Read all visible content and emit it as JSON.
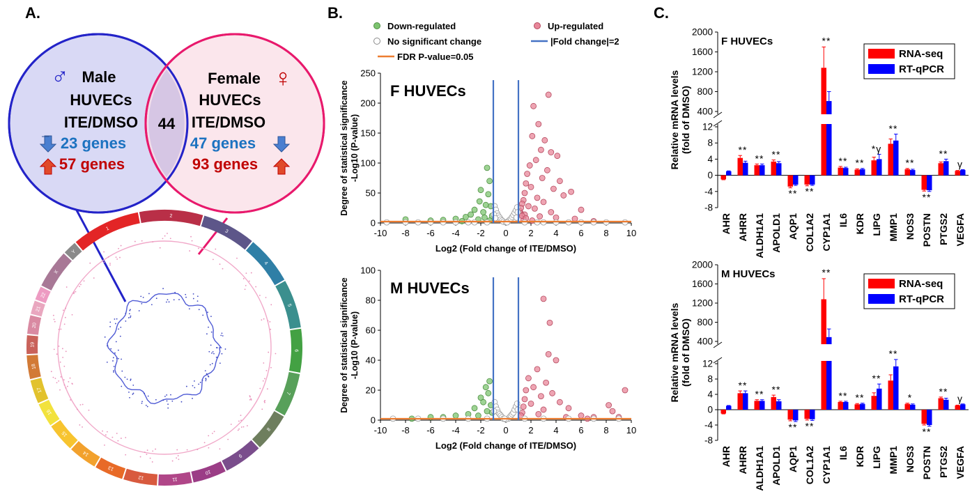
{
  "panels": {
    "a": {
      "label": "A.",
      "venn": {
        "male": {
          "symbol": "♂",
          "lines": [
            "Male",
            "HUVECs",
            "ITE/DMSO"
          ],
          "down_text": "23 genes",
          "up_text": "57 genes"
        },
        "female": {
          "symbol": "♀",
          "lines": [
            "Female",
            "HUVECs",
            "ITE/DMSO"
          ],
          "down_text": "47 genes",
          "up_text": "93 genes"
        },
        "overlap": "44"
      },
      "circos": {
        "chromosomes": [
          "1",
          "2",
          "3",
          "4",
          "5",
          "6",
          "7",
          "8",
          "9",
          "10",
          "11",
          "12",
          "13",
          "14",
          "15",
          "16",
          "17",
          "18",
          "19",
          "20",
          "21",
          "22",
          "X",
          "Y"
        ]
      }
    },
    "b": {
      "label": "B.",
      "legend": {
        "down": "Down-regulated",
        "up": "Up-regulated",
        "nochange": "No significant change",
        "fold": "|Fold change|=2",
        "fdr": "FDR P-value=0.05"
      }
    },
    "c": {
      "label": "C.",
      "legend": {
        "rnaseq": "RNA-seq",
        "qpcr": "RT-qPCR"
      }
    }
  },
  "colors": {
    "male_circle": "#2323c8",
    "male_fill": "#d9d9f5",
    "female_circle": "#e8196c",
    "female_fill": "#fadde6",
    "blue_text": "#1c72c0",
    "red_text": "#c00000",
    "down_points": "#7dc470",
    "up_points": "#e8879a",
    "nochange_points": "#9a9a9a",
    "fold_line": "#4472c4",
    "fdr_line": "#ed7d31",
    "rnaseq": "#ff0000",
    "qpcr": "#0000ff"
  },
  "chart_data": [
    {
      "id": "volcano-f",
      "type": "scatter",
      "title": "F HUVECs",
      "xlabel": "Log2 (Fold change of ITE/DMSO)",
      "ylabel": [
        "Degree of statistical significance",
        "-Log10 (P-value)"
      ],
      "xlim": [
        -10,
        10
      ],
      "ylim": [
        0,
        250
      ],
      "xticks": [
        -10,
        -8,
        -6,
        -4,
        -2,
        0,
        2,
        4,
        6,
        8,
        10
      ],
      "yticks": [
        0,
        50,
        100,
        150,
        200,
        250
      ],
      "fold_lines": [
        -1,
        1
      ],
      "series": [
        {
          "name": "Down-regulated",
          "points": [
            [
              -1.5,
              92
            ],
            [
              -1.3,
              70
            ],
            [
              -2.0,
              55
            ],
            [
              -1.4,
              48
            ],
            [
              -2.1,
              36
            ],
            [
              -1.6,
              30
            ],
            [
              -1.2,
              28
            ],
            [
              -2.5,
              22
            ],
            [
              -1.8,
              18
            ],
            [
              -2.8,
              14
            ],
            [
              -3.2,
              10
            ],
            [
              -4.0,
              7
            ],
            [
              -5.0,
              5
            ],
            [
              -6.0,
              4
            ],
            [
              -8.0,
              6
            ],
            [
              -1.1,
              12
            ],
            [
              -1.7,
              9
            ],
            [
              -2.2,
              6
            ],
            [
              -3.5,
              3
            ],
            [
              -1.3,
              4
            ]
          ]
        },
        {
          "name": "Up-regulated",
          "points": [
            [
              3.4,
              214
            ],
            [
              2.2,
              195
            ],
            [
              2.6,
              165
            ],
            [
              2.1,
              145
            ],
            [
              3.1,
              138
            ],
            [
              2.8,
              122
            ],
            [
              3.6,
              118
            ],
            [
              4.1,
              112
            ],
            [
              2.4,
              105
            ],
            [
              1.9,
              96
            ],
            [
              3.3,
              88
            ],
            [
              1.7,
              82
            ],
            [
              2.9,
              75
            ],
            [
              4.3,
              70
            ],
            [
              1.6,
              66
            ],
            [
              2.0,
              60
            ],
            [
              3.8,
              57
            ],
            [
              5.2,
              52
            ],
            [
              1.5,
              50
            ],
            [
              4.6,
              46
            ],
            [
              2.5,
              42
            ],
            [
              1.4,
              38
            ],
            [
              3.0,
              35
            ],
            [
              1.3,
              32
            ],
            [
              1.8,
              28
            ],
            [
              2.3,
              24
            ],
            [
              6.0,
              22
            ],
            [
              3.6,
              18
            ],
            [
              1.2,
              16
            ],
            [
              1.5,
              14
            ],
            [
              2.7,
              11
            ],
            [
              4.0,
              9
            ],
            [
              5.5,
              7
            ],
            [
              1.4,
              6
            ],
            [
              2.1,
              4
            ],
            [
              7.0,
              3
            ],
            [
              1.1,
              20
            ],
            [
              1.2,
              25
            ],
            [
              1.3,
              12
            ],
            [
              1.6,
              8
            ]
          ]
        },
        {
          "name": "No significant change",
          "points": [
            [
              -0.9,
              28
            ],
            [
              -0.8,
              22
            ],
            [
              -0.7,
              16
            ],
            [
              -0.6,
              12
            ],
            [
              -0.5,
              9
            ],
            [
              -0.4,
              6
            ],
            [
              -0.3,
              4
            ],
            [
              -0.2,
              2
            ],
            [
              0.2,
              3
            ],
            [
              0.3,
              5
            ],
            [
              0.4,
              7
            ],
            [
              0.5,
              10
            ],
            [
              0.6,
              13
            ],
            [
              0.7,
              17
            ],
            [
              0.8,
              21
            ],
            [
              0.9,
              26
            ],
            [
              -0.95,
              14
            ],
            [
              0.95,
              18
            ],
            [
              -0.85,
              8
            ],
            [
              0.85,
              9
            ],
            [
              -1.5,
              1
            ],
            [
              -2.5,
              1
            ],
            [
              -4,
              1
            ],
            [
              -6,
              1
            ],
            [
              -8,
              1
            ],
            [
              1.5,
              1
            ],
            [
              2.5,
              1
            ],
            [
              4,
              1
            ],
            [
              6,
              1
            ],
            [
              8,
              1
            ],
            [
              9.5,
              1
            ],
            [
              -9.5,
              1
            ],
            [
              3,
              1
            ],
            [
              5,
              1
            ],
            [
              7,
              1
            ],
            [
              -3,
              1
            ],
            [
              -5,
              1
            ],
            [
              -7,
              1
            ],
            [
              0,
              1
            ],
            [
              0.1,
              1
            ]
          ]
        }
      ]
    },
    {
      "id": "volcano-m",
      "type": "scatter",
      "title": "M HUVECs",
      "xlabel": "Log2 (Fold change of ITE/DMSO)",
      "ylabel": [
        "Degree of statistical significance",
        "-Log10 (P-value)"
      ],
      "xlim": [
        -10,
        10
      ],
      "ylim": [
        0,
        100
      ],
      "xticks": [
        -10,
        -8,
        -6,
        -4,
        -2,
        0,
        2,
        4,
        6,
        8,
        10
      ],
      "yticks": [
        0,
        20,
        40,
        60,
        80,
        100
      ],
      "fold_lines": [
        -1,
        1
      ],
      "series": [
        {
          "name": "Down-regulated",
          "points": [
            [
              -1.3,
              26
            ],
            [
              -1.6,
              22
            ],
            [
              -1.4,
              18
            ],
            [
              -2.0,
              15
            ],
            [
              -1.8,
              12
            ],
            [
              -1.2,
              10
            ],
            [
              -2.5,
              8
            ],
            [
              -1.5,
              6
            ],
            [
              -3.0,
              4
            ],
            [
              -4.0,
              3
            ],
            [
              -5.0,
              2
            ],
            [
              -6.0,
              2
            ],
            [
              -1.1,
              5
            ],
            [
              -2.2,
              3
            ],
            [
              -7.5,
              1
            ]
          ]
        },
        {
          "name": "Up-regulated",
          "points": [
            [
              3.0,
              81
            ],
            [
              3.5,
              65
            ],
            [
              3.4,
              44
            ],
            [
              4.0,
              40
            ],
            [
              2.5,
              34
            ],
            [
              1.8,
              28
            ],
            [
              3.2,
              25
            ],
            [
              2.2,
              22
            ],
            [
              1.6,
              20
            ],
            [
              9.5,
              20
            ],
            [
              3.7,
              18
            ],
            [
              2.8,
              16
            ],
            [
              1.5,
              14
            ],
            [
              4.3,
              12
            ],
            [
              2.0,
              11
            ],
            [
              8.2,
              10
            ],
            [
              1.4,
              9
            ],
            [
              5.0,
              8
            ],
            [
              3.0,
              7
            ],
            [
              8.5,
              6
            ],
            [
              1.3,
              5
            ],
            [
              2.6,
              4
            ],
            [
              6.0,
              3
            ],
            [
              7.0,
              2
            ],
            [
              1.2,
              3
            ],
            [
              9.0,
              2
            ],
            [
              4.8,
              2
            ],
            [
              6.5,
              1
            ]
          ]
        },
        {
          "name": "No significant change",
          "points": [
            [
              -0.9,
              12
            ],
            [
              -0.8,
              9
            ],
            [
              -0.7,
              7
            ],
            [
              -0.6,
              5
            ],
            [
              -0.5,
              4
            ],
            [
              -0.4,
              3
            ],
            [
              -0.3,
              2
            ],
            [
              -0.2,
              1
            ],
            [
              0.2,
              1
            ],
            [
              0.3,
              2
            ],
            [
              0.4,
              3
            ],
            [
              0.5,
              4
            ],
            [
              0.6,
              5
            ],
            [
              0.7,
              7
            ],
            [
              0.8,
              9
            ],
            [
              0.9,
              11
            ],
            [
              -0.95,
              6
            ],
            [
              0.95,
              7
            ],
            [
              -1.5,
              1
            ],
            [
              -3,
              1
            ],
            [
              -5,
              1
            ],
            [
              -7,
              1
            ],
            [
              -9,
              1
            ],
            [
              1.5,
              1
            ],
            [
              3,
              1
            ],
            [
              5,
              1
            ],
            [
              7,
              1
            ],
            [
              9,
              1
            ],
            [
              0,
              0.5
            ],
            [
              -0.1,
              1
            ]
          ]
        }
      ]
    },
    {
      "id": "bars-f",
      "type": "bar",
      "title": "F HUVECs",
      "ylabel": [
        "Relative mRNA levels",
        "(fold of DMSO)"
      ],
      "categories": [
        "AHR",
        "AHRR",
        "ALDH1A1",
        "APOLD1",
        "AQP1",
        "COL1A2",
        "CYP1A1",
        "IL6",
        "KDR",
        "LIPG",
        "MMP1",
        "NOS3",
        "POSTN",
        "PTGS2",
        "VEGFA"
      ],
      "series": [
        {
          "name": "RNA-seq",
          "values": [
            -1.0,
            4.3,
            2.5,
            3.4,
            -2.8,
            -2.3,
            1280,
            1.9,
            1.4,
            3.7,
            7.8,
            1.5,
            -3.6,
            3.0,
            1.1
          ],
          "errors": [
            0.1,
            0.6,
            0.3,
            0.4,
            0.3,
            0.3,
            420,
            0.3,
            0.2,
            0.8,
            1.2,
            0.2,
            0.3,
            0.3,
            0.1
          ]
        },
        {
          "name": "RT-qPCR",
          "values": [
            1.0,
            3.1,
            2.5,
            3.0,
            -2.3,
            -2.3,
            610,
            1.8,
            1.5,
            4.0,
            8.6,
            1.3,
            -3.7,
            3.5,
            1.3
          ],
          "errors": [
            0.1,
            0.4,
            0.3,
            0.4,
            0.2,
            0.2,
            190,
            0.2,
            0.2,
            1.2,
            1.6,
            0.2,
            0.3,
            0.5,
            0.1
          ]
        }
      ],
      "marks": [
        "",
        "**",
        "**",
        "**",
        "**",
        "**",
        "**",
        "**",
        "**",
        "*γ",
        "**",
        "**",
        "**",
        "**",
        "γ"
      ],
      "upper_axis": {
        "ylim": [
          400,
          2000
        ],
        "ticks": [
          400,
          800,
          1200,
          1600,
          2000
        ]
      },
      "lower_axis": {
        "ylim": [
          -8,
          12
        ],
        "ticks": [
          -8,
          -4,
          0,
          4,
          8,
          12
        ]
      },
      "legend_position": "top-right"
    },
    {
      "id": "bars-m",
      "type": "bar",
      "title": "M HUVECs",
      "ylabel": [
        "Relative mRNA levels",
        "(fold of DMSO)"
      ],
      "categories": [
        "AHR",
        "AHRR",
        "ALDH1A1",
        "APOLD1",
        "AQP1",
        "COL1A2",
        "CYP1A1",
        "IL6",
        "KDR",
        "LIPG",
        "MMP1",
        "NOS3",
        "POSTN",
        "PTGS2",
        "VEGFA"
      ],
      "series": [
        {
          "name": "RNA-seq",
          "values": [
            -1.0,
            4.3,
            2.3,
            3.3,
            -2.6,
            -2.4,
            1280,
            2.0,
            1.4,
            3.6,
            7.6,
            1.5,
            -3.7,
            3.0,
            1.1
          ],
          "errors": [
            0.1,
            0.6,
            0.3,
            0.5,
            0.3,
            0.3,
            430,
            0.2,
            0.2,
            0.8,
            1.5,
            0.2,
            0.3,
            0.3,
            0.1
          ]
        },
        {
          "name": "RT-qPCR",
          "values": [
            1.0,
            4.3,
            2.3,
            2.2,
            -2.8,
            -2.5,
            490,
            2.0,
            1.5,
            5.5,
            11.3,
            1.3,
            -4.0,
            2.6,
            1.4
          ],
          "errors": [
            0.1,
            0.6,
            0.3,
            0.4,
            0.3,
            0.3,
            170,
            0.2,
            0.2,
            1.2,
            1.8,
            0.2,
            0.3,
            0.4,
            0.1
          ]
        }
      ],
      "marks": [
        "",
        "**",
        "**",
        "**",
        "**",
        "**",
        "**",
        "**",
        "**",
        "**",
        "**",
        "*",
        "**",
        "**",
        "γ"
      ],
      "upper_axis": {
        "ylim": [
          400,
          2000
        ],
        "ticks": [
          400,
          800,
          1200,
          1600,
          2000
        ]
      },
      "lower_axis": {
        "ylim": [
          -8,
          12
        ],
        "ticks": [
          -8,
          -4,
          0,
          4,
          8,
          12
        ]
      },
      "legend_position": "top-right"
    }
  ]
}
